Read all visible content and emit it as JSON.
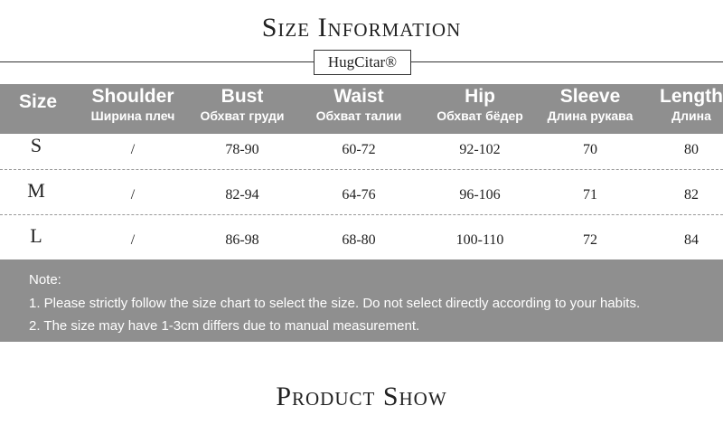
{
  "header": {
    "title": "Size Information",
    "brand": "HugCitar®"
  },
  "table": {
    "columns": [
      {
        "name": "Size",
        "ru": null
      },
      {
        "name": "Shoulder",
        "ru": "Ширина плеч"
      },
      {
        "name": "Bust",
        "ru": "Обхват груди"
      },
      {
        "name": "Waist",
        "ru": "Обхват талии"
      },
      {
        "name": "Hip",
        "ru": "Обхват бёдер"
      },
      {
        "name": "Sleeve",
        "ru": "Длина рукава"
      },
      {
        "name": "Length",
        "ru": "Длина"
      }
    ],
    "rows": [
      [
        "S",
        "/",
        "78-90",
        "60-72",
        "92-102",
        "70",
        "80"
      ],
      [
        "M",
        "/",
        "82-94",
        "64-76",
        "96-106",
        "71",
        "82"
      ],
      [
        "L",
        "/",
        "86-98",
        "68-80",
        "100-110",
        "72",
        "84"
      ]
    ]
  },
  "notes": {
    "heading": "Note:",
    "items": [
      "1. Please strictly follow the size chart to select the size. Do not select directly according to your habits.",
      "2. The size may have 1-3cm differs due to manual measurement."
    ]
  },
  "footer": {
    "title": "Product Show"
  }
}
